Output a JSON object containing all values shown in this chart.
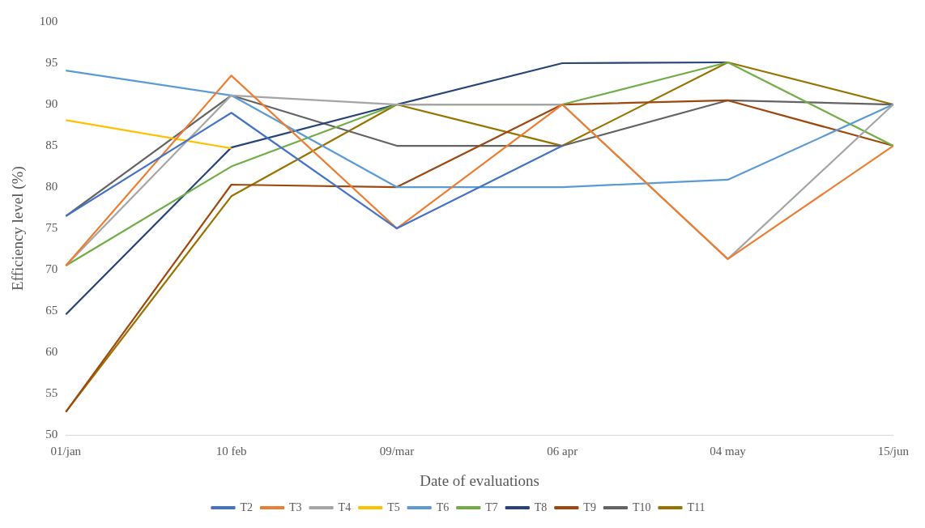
{
  "chart_data": {
    "type": "line",
    "xlabel": "Date of evaluations",
    "ylabel": "Efficiency level (%)",
    "categories": [
      "01/jan",
      "10 feb",
      "09/mar",
      "06 apr",
      "04 may",
      "15/jun"
    ],
    "ylim": [
      50,
      100
    ],
    "yticks": [
      50,
      55,
      60,
      65,
      70,
      75,
      80,
      85,
      90,
      95,
      100
    ],
    "grid": false,
    "legend": "bottom",
    "marker": "none",
    "line_style": "solid",
    "series": [
      {
        "name": "T2",
        "color": "#4472c4",
        "values": [
          76.5,
          89,
          75,
          85,
          null,
          null
        ]
      },
      {
        "name": "T3",
        "color": "#ed7d31",
        "values": [
          70.5,
          93.5,
          75,
          90,
          71.3,
          85
        ]
      },
      {
        "name": "T4",
        "color": "#a5a5a5",
        "values": [
          70.5,
          91.1,
          90,
          90,
          71.3,
          90
        ]
      },
      {
        "name": "T5",
        "color": "#ffc000",
        "values": [
          88.1,
          84.7,
          null,
          null,
          null,
          null
        ]
      },
      {
        "name": "T6",
        "color": "#5b9bd5",
        "values": [
          94.1,
          91.1,
          80,
          80,
          80.9,
          90
        ]
      },
      {
        "name": "T7",
        "color": "#70ad47",
        "values": [
          70.5,
          82.5,
          90,
          90,
          95.1,
          85
        ]
      },
      {
        "name": "T8",
        "color": "#264478",
        "values": [
          64.6,
          84.8,
          90,
          95,
          95.1,
          null
        ]
      },
      {
        "name": "T9",
        "color": "#9e480e",
        "values": [
          52.8,
          80.3,
          80,
          90,
          90.5,
          85
        ]
      },
      {
        "name": "T10",
        "color": "#636363",
        "values": [
          76.5,
          91.1,
          85,
          85,
          90.5,
          90
        ]
      },
      {
        "name": "T11",
        "color": "#997300",
        "values": [
          52.8,
          78.9,
          90,
          85,
          95.1,
          90
        ]
      }
    ]
  }
}
